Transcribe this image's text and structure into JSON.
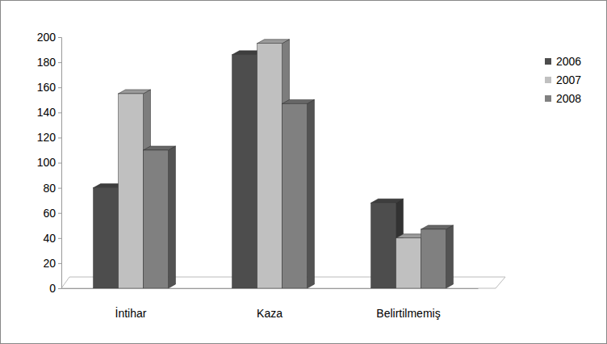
{
  "chart_data": {
    "type": "bar",
    "categories": [
      "İntihar",
      "Kaza",
      "Belirtilmemiş"
    ],
    "series": [
      {
        "name": "2006",
        "color": "#4d4d4d",
        "values": [
          80,
          186,
          68
        ]
      },
      {
        "name": "2007",
        "color": "#c0c0c0",
        "values": [
          155,
          195,
          40
        ]
      },
      {
        "name": "2008",
        "color": "#808080",
        "values": [
          110,
          147,
          47
        ]
      }
    ],
    "ylim": [
      0,
      200
    ],
    "yticks": [
      0,
      20,
      40,
      60,
      80,
      100,
      120,
      140,
      160,
      180,
      200
    ],
    "grid": false,
    "legend": "right"
  }
}
